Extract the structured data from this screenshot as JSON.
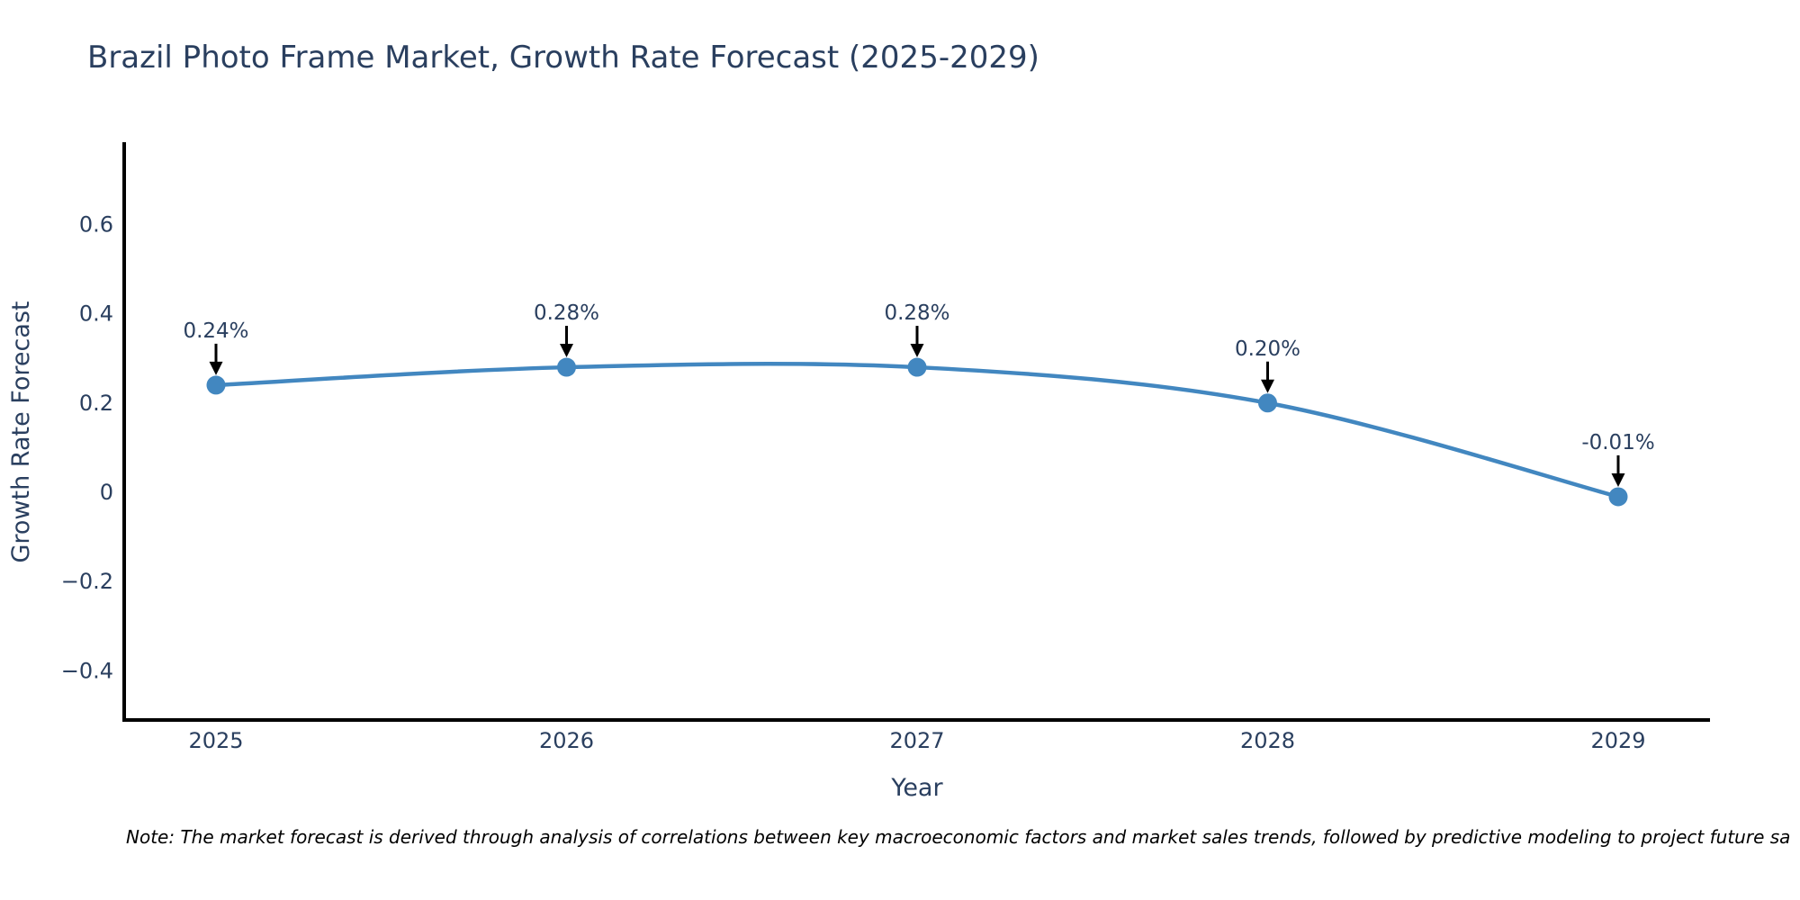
{
  "chart": {
    "title": "Brazil Photo Frame Market, Growth Rate Forecast (2025-2029)",
    "xlabel": "Year",
    "ylabel": "Growth Rate Forecast"
  },
  "note": {
    "text": "Note: The market forecast is derived through analysis of correlations between key macroeconomic factors and market sales trends, followed by predictive modeling to project future sa"
  },
  "colors": {
    "line": "#4287c0",
    "marker": "#4287c0",
    "axis": "#000000",
    "arrow": "#000000",
    "title_text": "#2a3f5f",
    "tick_text": "#2a3f5f",
    "annotation_text": "#2a3f5f",
    "background": "#ffffff"
  },
  "chart_data": {
    "type": "line",
    "x": [
      2025,
      2026,
      2027,
      2028,
      2029
    ],
    "values": [
      0.24,
      0.28,
      0.28,
      0.2,
      -0.01
    ],
    "point_labels": [
      "0.24%",
      "0.28%",
      "0.28%",
      "0.20%",
      "-0.01%"
    ],
    "series_name": "Growth Rate Forecast",
    "title": "Brazil Photo Frame Market, Growth Rate Forecast (2025-2029)",
    "xlabel": "Year",
    "ylabel": "Growth Rate Forecast",
    "xtick_labels": [
      "2025",
      "2026",
      "2027",
      "2028",
      "2029"
    ],
    "yticks": [
      0.6,
      0.4,
      0.2,
      0,
      -0.2,
      -0.4
    ],
    "ytick_labels": [
      "0.6",
      "0.4",
      "0.2",
      "0",
      "−0.2",
      "−0.4"
    ],
    "ylim": [
      -0.51,
      0.78
    ],
    "line_shape": "spline",
    "grid": false,
    "legend_visible": false,
    "annotations_have_arrows": true
  }
}
